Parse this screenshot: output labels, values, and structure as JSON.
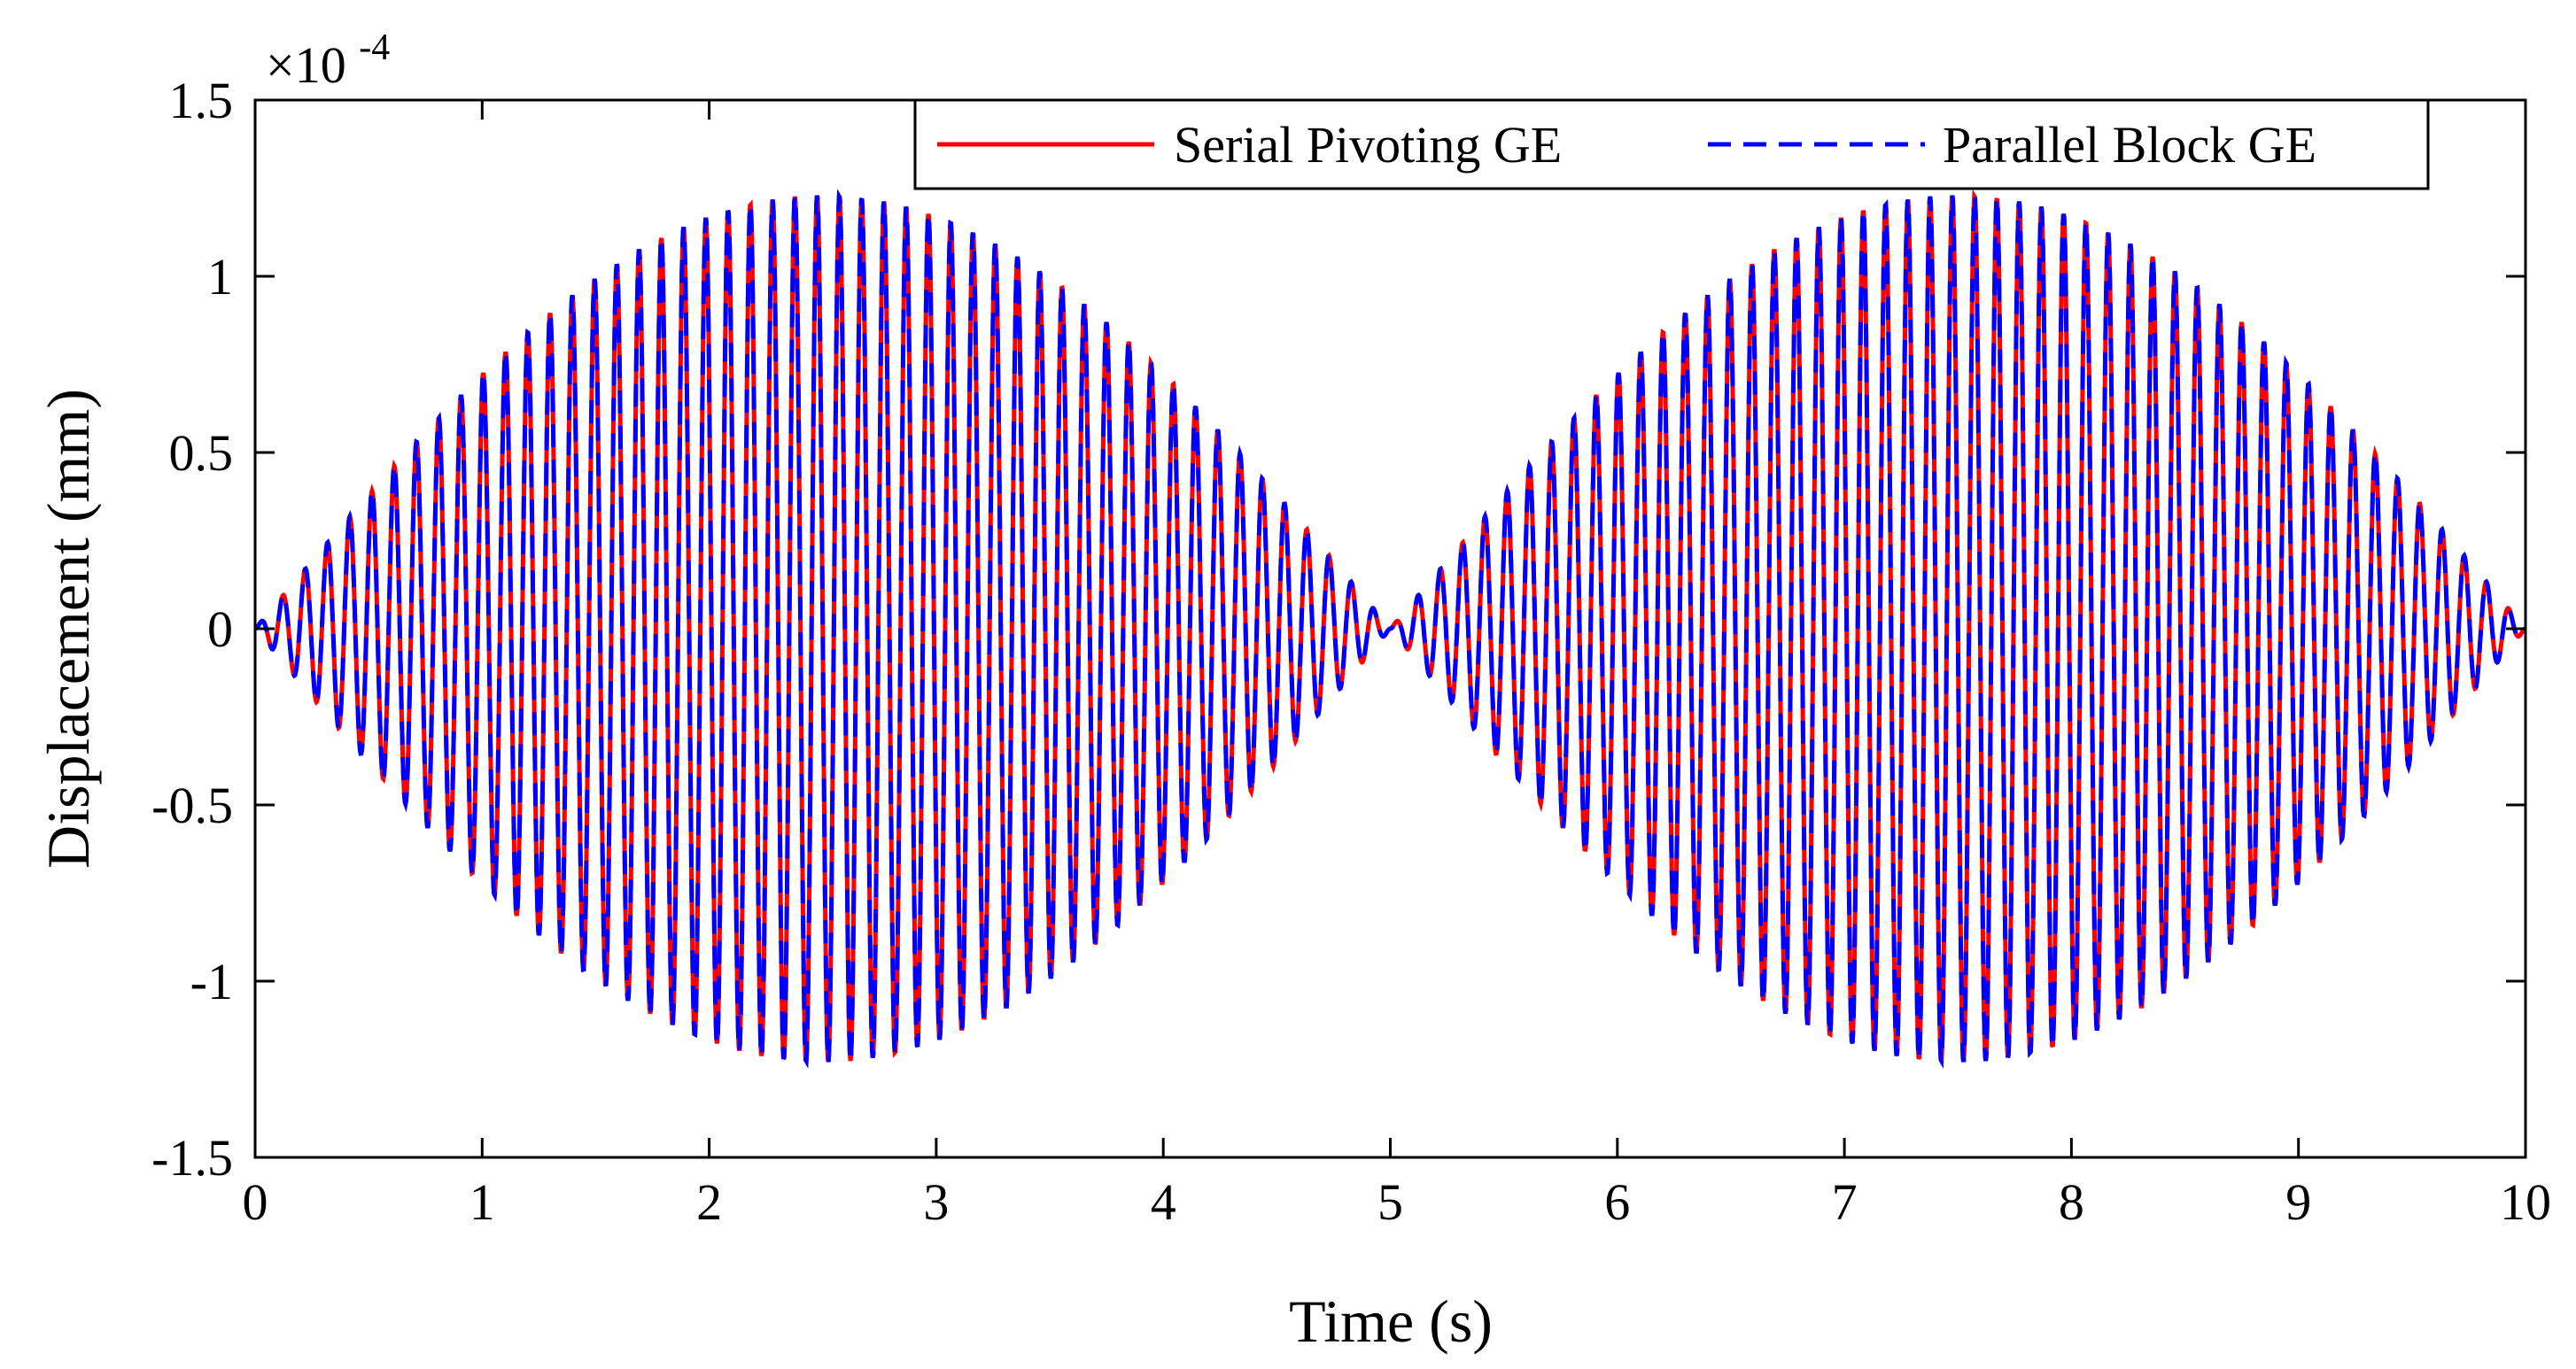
{
  "chart_data": {
    "type": "line",
    "title": "",
    "xlabel": "Time (s)",
    "ylabel": "Displacement (mm)",
    "xlim": [
      0,
      10
    ],
    "ylim": [
      -1.5,
      1.5
    ],
    "y_scale_exponent": "×10",
    "y_scale_power": "-4",
    "x_ticks": [
      0,
      1,
      2,
      3,
      4,
      5,
      6,
      7,
      8,
      9,
      10
    ],
    "x_tick_labels": [
      "0",
      "1",
      "2",
      "3",
      "4",
      "5",
      "6",
      "7",
      "8",
      "9",
      "10"
    ],
    "y_ticks": [
      1.5,
      1,
      0.5,
      0,
      -0.5,
      -1,
      -1.5
    ],
    "y_tick_labels": [
      "1.5",
      "1",
      "0.5",
      "0",
      "-0.5",
      "-1",
      "-1.5"
    ],
    "grid": false,
    "legend_position": "top-right",
    "signal": {
      "carrier_frequency_hz": 10.2,
      "envelope": "|sin(pi * t / 5)|",
      "peak_amplitude": 1.23,
      "samples": 4000
    },
    "series": [
      {
        "name": "Serial Pivoting GE",
        "color": "#ff0000",
        "style": "solid"
      },
      {
        "name": "Parallel Block GE",
        "color": "#0000ff",
        "style": "dashed"
      }
    ]
  }
}
